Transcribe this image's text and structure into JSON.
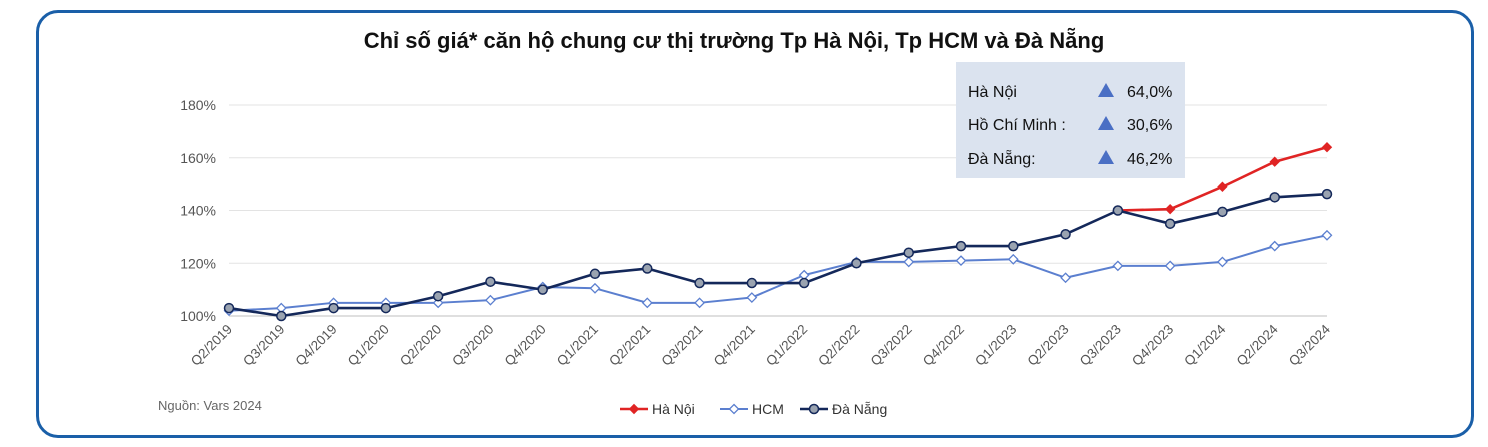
{
  "chart_data": {
    "type": "line",
    "title": "Chỉ số giá* căn hộ chung cư thị trường Tp Hà Nội, Tp HCM và Đà Nẵng",
    "categories": [
      "Q2/2019",
      "Q3/2019",
      "Q4/2019",
      "Q1/2020",
      "Q2/2020",
      "Q3/2020",
      "Q4/2020",
      "Q1/2021",
      "Q2/2021",
      "Q3/2021",
      "Q4/2021",
      "Q1/2022",
      "Q2/2022",
      "Q3/2022",
      "Q4/2022",
      "Q1/2023",
      "Q2/2023",
      "Q3/2023",
      "Q4/2023",
      "Q1/2024",
      "Q2/2024",
      "Q3/2024"
    ],
    "ylim": [
      100,
      180
    ],
    "yticks": [
      "100%",
      "120%",
      "140%",
      "160%",
      "180%"
    ],
    "grid": true,
    "legend_position": "bottom",
    "series": [
      {
        "name": "Hà Nội",
        "color": "#e02424",
        "marker": "diamond",
        "values": [
          null,
          null,
          null,
          null,
          null,
          null,
          null,
          null,
          null,
          null,
          null,
          null,
          null,
          null,
          null,
          null,
          null,
          140.0,
          140.5,
          149.0,
          158.5,
          164.0
        ]
      },
      {
        "name": "HCM",
        "color": "#5b7fcf",
        "marker": "diamond-open",
        "values": [
          102.0,
          103.0,
          105.0,
          105.0,
          105.0,
          106.0,
          111.0,
          110.5,
          105.0,
          105.0,
          107.0,
          115.5,
          120.5,
          120.5,
          121.0,
          121.5,
          114.5,
          119.0,
          119.0,
          120.5,
          126.5,
          130.6
        ]
      },
      {
        "name": "Đà Nẵng",
        "color": "#14285a",
        "marker": "circle",
        "values": [
          103.0,
          100.0,
          103.0,
          103.0,
          107.5,
          113.0,
          110.0,
          116.0,
          118.0,
          112.5,
          112.5,
          112.5,
          120.0,
          124.0,
          126.5,
          126.5,
          131.0,
          140.0,
          135.0,
          139.5,
          145.0,
          146.2
        ]
      }
    ],
    "annotation_box": {
      "rows": [
        {
          "label": "Hà Nội",
          "value": "64,0%"
        },
        {
          "label": "Hồ Chí Minh :",
          "value": "30,6%"
        },
        {
          "label": "Đà Nẵng:",
          "value": "46,2%"
        }
      ],
      "background": "#dbe3ef",
      "marker_color": "#4a6fc4"
    },
    "source": "Nguồn: Vars 2024"
  }
}
